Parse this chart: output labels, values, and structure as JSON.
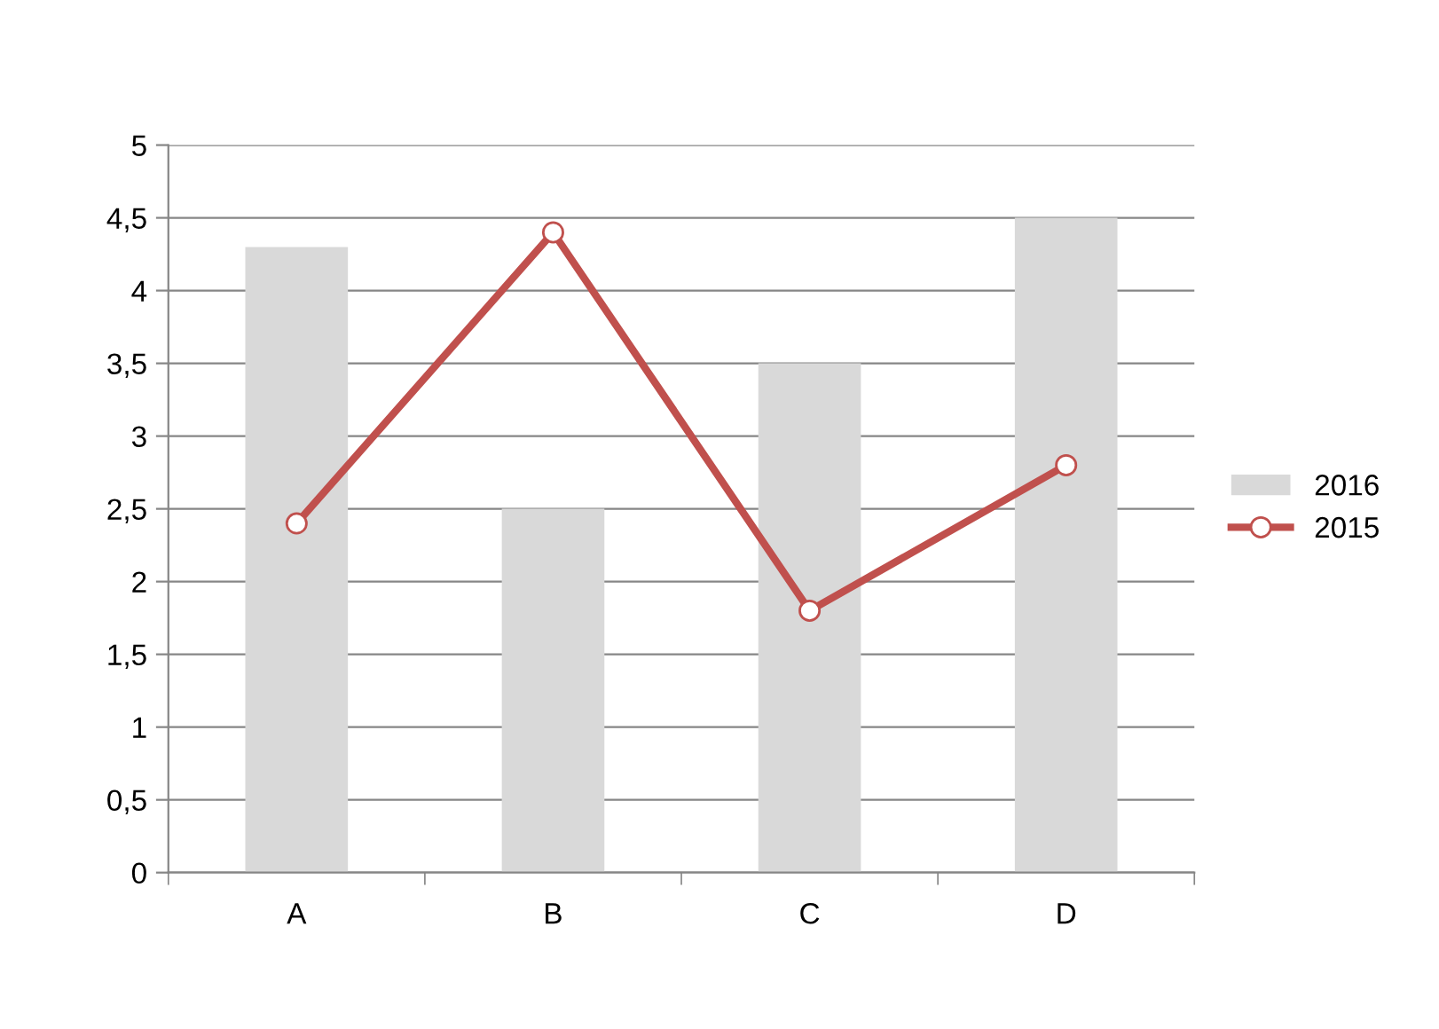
{
  "chart_data": {
    "type": "bar",
    "categories": [
      "A",
      "B",
      "C",
      "D"
    ],
    "series": [
      {
        "name": "2016",
        "color": "#d9d9d9",
        "values": [
          4.3,
          2.5,
          3.5,
          4.5
        ]
      },
      {
        "name": "2015",
        "type": "line",
        "color": "#c0504d",
        "values": [
          2.4,
          4.4,
          1.8,
          2.8
        ],
        "marker": "circle"
      }
    ],
    "ylim": [
      0,
      5
    ],
    "yticks": [
      0,
      {
        "value": 0.5,
        "label": "0,5"
      },
      1,
      {
        "value": 1.5,
        "label": "1,5"
      },
      2,
      {
        "value": 2.5,
        "label": "2,5"
      },
      3,
      {
        "value": 3.5,
        "label": "3,5"
      },
      4,
      {
        "value": 4.5,
        "label": "4,5"
      },
      5
    ],
    "grid": "y",
    "legend": "right"
  }
}
